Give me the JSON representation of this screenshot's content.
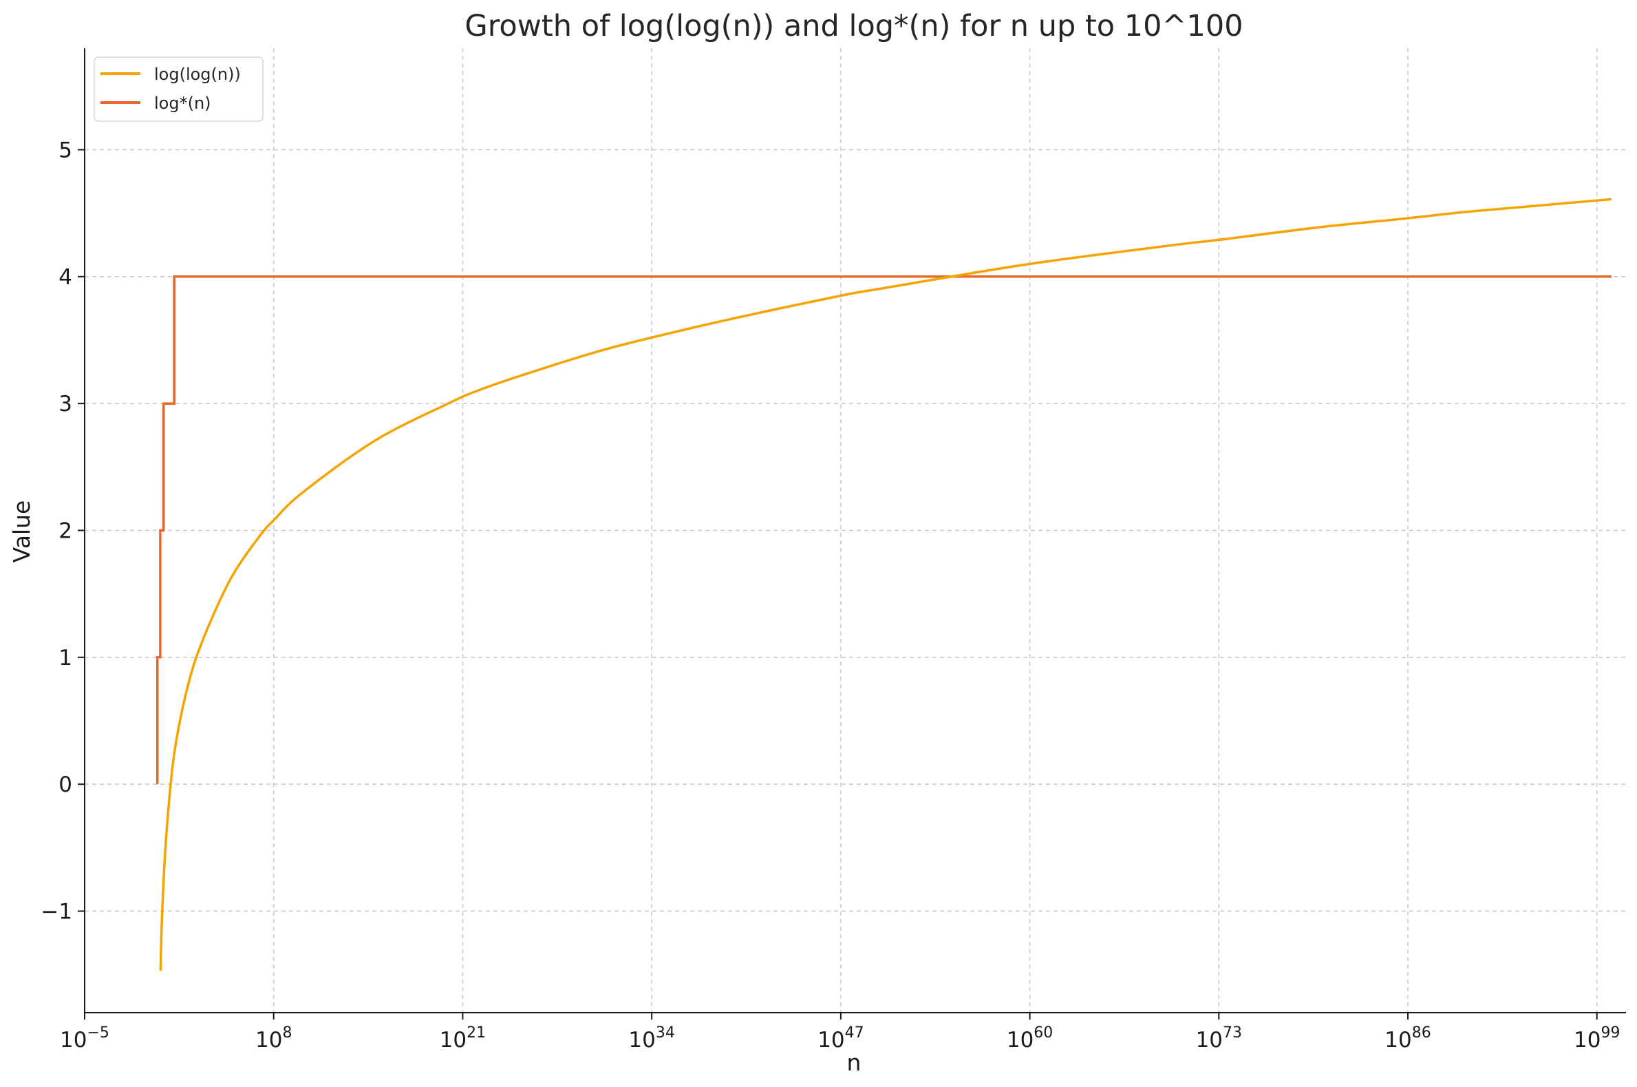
{
  "chart_data": {
    "type": "line",
    "title": "Growth of log(log(n)) and log*(n) for n up to 10^100",
    "xlabel": "n",
    "ylabel": "Value",
    "x_scale": "log",
    "xlim_exponent": [
      -5,
      101
    ],
    "ylim": [
      -1.8,
      5.8
    ],
    "x_ticks": [
      {
        "base": "10",
        "exp": "−5",
        "value_exp": -5
      },
      {
        "base": "10",
        "exp": "8",
        "value_exp": 8
      },
      {
        "base": "10",
        "exp": "21",
        "value_exp": 21
      },
      {
        "base": "10",
        "exp": "34",
        "value_exp": 34
      },
      {
        "base": "10",
        "exp": "47",
        "value_exp": 47
      },
      {
        "base": "10",
        "exp": "60",
        "value_exp": 60
      },
      {
        "base": "10",
        "exp": "73",
        "value_exp": 73
      },
      {
        "base": "10",
        "exp": "86",
        "value_exp": 86
      },
      {
        "base": "10",
        "exp": "99",
        "value_exp": 99
      }
    ],
    "y_ticks": [
      {
        "label": "−1",
        "value": -1
      },
      {
        "label": "0",
        "value": 0
      },
      {
        "label": "1",
        "value": 1
      },
      {
        "label": "2",
        "value": 2
      },
      {
        "label": "3",
        "value": 3
      },
      {
        "label": "4",
        "value": 4
      },
      {
        "label": "5",
        "value": 5
      }
    ],
    "grid": true,
    "legend_position": "top-left",
    "series": [
      {
        "name": "log(log(n))",
        "color": "#f5a300",
        "x_exponent": [
          0.22,
          0.3,
          0.5,
          0.8,
          1.2,
          2,
          3,
          5,
          7,
          8,
          10,
          15,
          20,
          22,
          25,
          30,
          34,
          40,
          47,
          50,
          60,
          70,
          73,
          80,
          86,
          90,
          95,
          100
        ],
        "y": [
          -1.47,
          -1.11,
          -0.61,
          -0.14,
          0.27,
          0.73,
          1.1,
          1.61,
          1.95,
          2.08,
          2.3,
          2.71,
          3.0,
          3.1,
          3.22,
          3.4,
          3.52,
          3.68,
          3.85,
          3.91,
          4.1,
          4.25,
          4.29,
          4.39,
          4.46,
          4.51,
          4.56,
          4.61
        ]
      },
      {
        "name": "log*(n)",
        "color": "#e8672a",
        "x_exponent": [
          0,
          0,
          0.2,
          0.2,
          0.43,
          0.43,
          1.16,
          1.16,
          6.7,
          6.7,
          100
        ],
        "y": [
          0,
          1,
          1,
          2,
          2,
          3,
          3,
          4,
          4,
          4,
          4
        ]
      }
    ]
  }
}
